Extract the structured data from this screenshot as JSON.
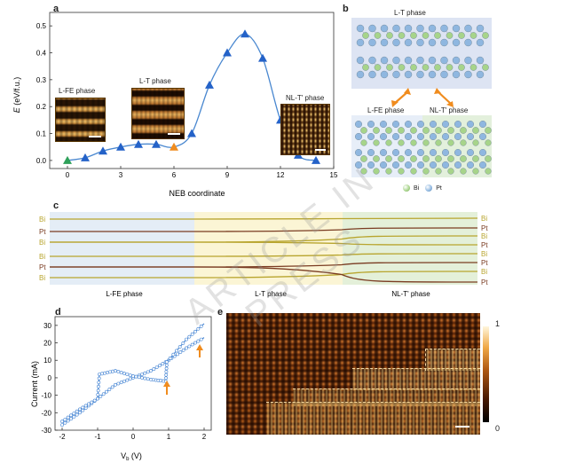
{
  "panels": {
    "a": "a",
    "b": "b",
    "c": "c",
    "d": "d",
    "e": "e"
  },
  "panel_a": {
    "insets": [
      "L-FE phase",
      "L-T phase",
      "NL-T' phase"
    ]
  },
  "panel_b": {
    "top_label": "L-T phase",
    "left_label": "L-FE phase",
    "right_label": "NL-T' phase",
    "legend": [
      {
        "label": "Bi",
        "color": "#a7d48a"
      },
      {
        "label": "Pt",
        "color": "#8fb7e0"
      }
    ]
  },
  "panel_c": {
    "phase_labels": [
      "L-FE phase",
      "L-T phase",
      "NL-T' phase"
    ],
    "left_labels": [
      "Bi",
      "Pt",
      "Bi",
      "Bi",
      "Pt",
      "Bi"
    ],
    "right_labels": [
      "Bi",
      "Pt",
      "Bi",
      "Pt",
      "Bi",
      "Pt",
      "Bi",
      "Pt"
    ],
    "colors": {
      "Bi": "#b8a52e",
      "Pt": "#7a3c22"
    }
  },
  "panel_e": {
    "colorbar_max": "1",
    "colorbar_min": "0"
  },
  "watermark": "ARTICLE IN PRESS",
  "chart_data": [
    {
      "type": "line",
      "panel": "a",
      "xlabel": "NEB coordinate",
      "ylabel": "E (eV/f.u.)",
      "xlim": [
        -1,
        15
      ],
      "ylim": [
        -0.03,
        0.55
      ],
      "xticks": [
        0,
        3,
        6,
        9,
        12,
        15
      ],
      "yticks": [
        0.0,
        0.1,
        0.2,
        0.3,
        0.4,
        0.5
      ],
      "points": [
        {
          "x": 0,
          "y": 0.0,
          "marker": "green"
        },
        {
          "x": 1,
          "y": 0.01,
          "marker": "blue"
        },
        {
          "x": 2,
          "y": 0.035,
          "marker": "blue"
        },
        {
          "x": 3,
          "y": 0.05,
          "marker": "blue"
        },
        {
          "x": 4,
          "y": 0.06,
          "marker": "blue"
        },
        {
          "x": 5,
          "y": 0.06,
          "marker": "blue"
        },
        {
          "x": 6,
          "y": 0.05,
          "marker": "orange"
        },
        {
          "x": 7,
          "y": 0.1,
          "marker": "blue"
        },
        {
          "x": 8,
          "y": 0.28,
          "marker": "blue"
        },
        {
          "x": 9,
          "y": 0.4,
          "marker": "blue"
        },
        {
          "x": 10,
          "y": 0.47,
          "marker": "blue"
        },
        {
          "x": 11,
          "y": 0.38,
          "marker": "blue"
        },
        {
          "x": 12,
          "y": 0.15,
          "marker": "blue"
        },
        {
          "x": 13,
          "y": 0.02,
          "marker": "blue"
        },
        {
          "x": 14,
          "y": 0.0,
          "marker": "blue"
        }
      ]
    },
    {
      "type": "line",
      "panel": "d",
      "xlabel": "Vb (V)",
      "ylabel": "Current (mA)",
      "xlim": [
        -2.2,
        2.2
      ],
      "ylim": [
        -30,
        35
      ],
      "xticks": [
        -2,
        -1,
        0,
        1,
        2
      ],
      "yticks": [
        -30,
        -20,
        -10,
        0,
        10,
        20,
        30
      ],
      "series": [
        {
          "x": [
            -2,
            -1.5,
            -1,
            -0.5,
            0,
            0.5,
            1,
            1.5,
            2
          ],
          "y": [
            -27,
            -20,
            -12,
            -4,
            0,
            4,
            10,
            17,
            23
          ]
        },
        {
          "x": [
            -2,
            -1.5,
            -1,
            -0.95,
            -0.5,
            0,
            0.5,
            0.92,
            0.95,
            1.5,
            2
          ],
          "y": [
            -25,
            -18,
            -12,
            2,
            4,
            1,
            -1,
            -2,
            9,
            22,
            31
          ]
        }
      ]
    }
  ]
}
